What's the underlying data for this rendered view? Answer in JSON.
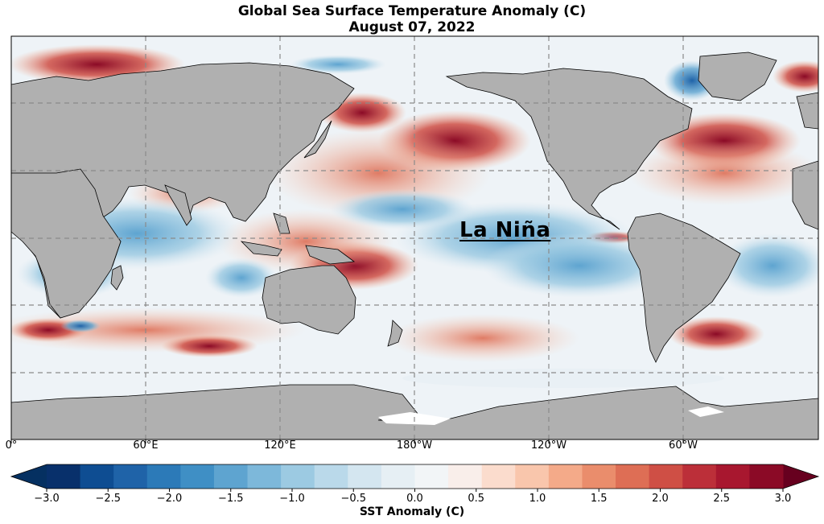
{
  "title": "Global Sea Surface Temperature Anomaly (C)",
  "subtitle": "August 07, 2022",
  "annotation": "La Niña",
  "x_ticks": [
    "0°",
    "60°E",
    "120°E",
    "180°W",
    "120°W",
    "60°W"
  ],
  "colorbar": {
    "label": "SST Anomaly (C)",
    "min": -3.0,
    "max": 3.0,
    "extend": "both",
    "colormap": "RdBu_r",
    "tick_labels": [
      "−3.0",
      "−2.5",
      "−2.0",
      "−1.5",
      "−1.0",
      "−0.5",
      "0.0",
      "0.5",
      "1.0",
      "1.5",
      "2.0",
      "2.5",
      "3.0"
    ],
    "colors": [
      "#08306b",
      "#0e4d92",
      "#1f63a8",
      "#2c7ab8",
      "#3f8fc5",
      "#5ea4d0",
      "#7db8da",
      "#9ccae2",
      "#bad9ea",
      "#d4e6f0",
      "#e6eff4",
      "#f2f5f7",
      "#f9eeea",
      "#fbdccd",
      "#f9c6ac",
      "#f4aa89",
      "#ea8d6c",
      "#de6e55",
      "#cf4f45",
      "#bc2f39",
      "#a8172f",
      "#8b0a26"
    ],
    "ext_low_color": "#053061",
    "ext_high_color": "#67001f"
  },
  "map": {
    "projection": "PlateCarree, central longitude 180",
    "land_color": "#b0b0b0",
    "neutral_ocean_color": "#eef3f7",
    "gridlines": "dashed gray"
  }
}
